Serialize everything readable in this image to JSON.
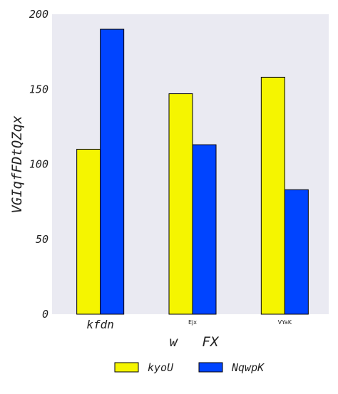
{
  "chart_data": {
    "type": "bar",
    "title": "",
    "xlabel": "w   FX",
    "ylabel": "VGIqfFDtQZqx",
    "categories": [
      "kfdn",
      "Ejx",
      "VYaK"
    ],
    "series": [
      {
        "name": "kyoU",
        "values": [
          110,
          147,
          158
        ],
        "color": "#f5f500"
      },
      {
        "name": "NqwpK",
        "values": [
          190,
          113,
          83
        ],
        "color": "#0044ff"
      }
    ],
    "ylim": [
      0,
      200
    ],
    "yticks": [
      0,
      50,
      100,
      150,
      200
    ],
    "grid": false,
    "legend_position": "bottom-center",
    "background_color": "#eaeaf2",
    "bar_edge_color": "#000000"
  }
}
